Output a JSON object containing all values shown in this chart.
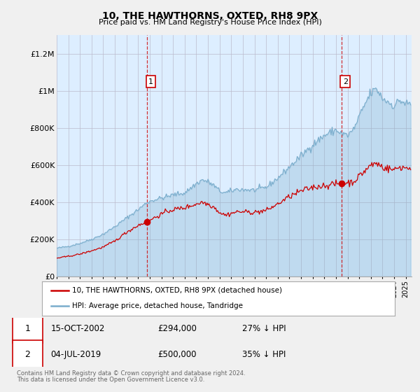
{
  "title": "10, THE HAWTHORNS, OXTED, RH8 9PX",
  "subtitle": "Price paid vs. HM Land Registry's House Price Index (HPI)",
  "ylabel_ticks": [
    "£0",
    "£200K",
    "£400K",
    "£600K",
    "£800K",
    "£1M",
    "£1.2M"
  ],
  "ytick_vals": [
    0,
    200000,
    400000,
    600000,
    800000,
    1000000,
    1200000
  ],
  "ylim": [
    0,
    1300000
  ],
  "xlim_start": 1995.0,
  "xlim_end": 2025.5,
  "property_color": "#cc0000",
  "hpi_color": "#7aadcc",
  "hpi_fill_color": "#ddeeff",
  "legend_property": "10, THE HAWTHORNS, OXTED, RH8 9PX (detached house)",
  "legend_hpi": "HPI: Average price, detached house, Tandridge",
  "sale1_date": "15-OCT-2002",
  "sale1_price": "£294,000",
  "sale1_pct": "27% ↓ HPI",
  "sale1_x": 2002.79,
  "sale1_y": 294000,
  "sale2_date": "04-JUL-2019",
  "sale2_price": "£500,000",
  "sale2_pct": "35% ↓ HPI",
  "sale2_x": 2019.5,
  "sale2_y": 500000,
  "footnote1": "Contains HM Land Registry data © Crown copyright and database right 2024.",
  "footnote2": "This data is licensed under the Open Government Licence v3.0.",
  "background_color": "#f0f0f0",
  "plot_background": "#ddeeff"
}
